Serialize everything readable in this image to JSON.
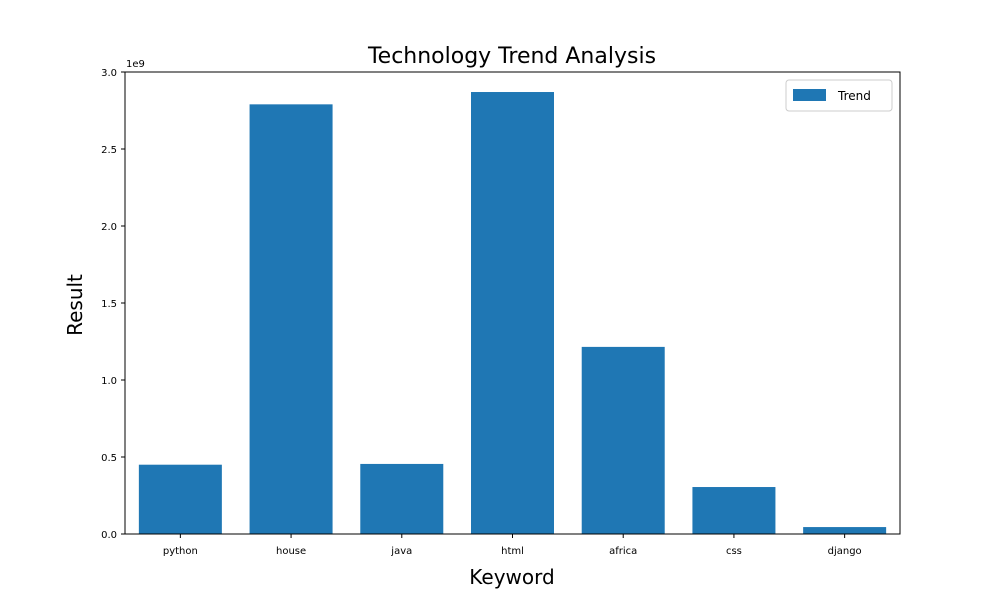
{
  "chart_data": {
    "type": "bar",
    "title": "Technology Trend Analysis",
    "xlabel": "Keyword",
    "ylabel": "Result",
    "categories": [
      "python",
      "house",
      "java",
      "html",
      "africa",
      "css",
      "django"
    ],
    "series": [
      {
        "name": "Trend",
        "values": [
          450000000,
          2790000000,
          455000000,
          2870000000,
          1215000000,
          305000000,
          45000000
        ]
      }
    ],
    "ylim": [
      0,
      3000000000
    ],
    "yticks": [
      "0.0",
      "0.5",
      "1.0",
      "1.5",
      "2.0",
      "2.5",
      "3.0"
    ],
    "y_multiplier_label": "1e9",
    "grid": false,
    "legend_position": "top-right",
    "colors": {
      "bar": "#1f77b4"
    }
  }
}
